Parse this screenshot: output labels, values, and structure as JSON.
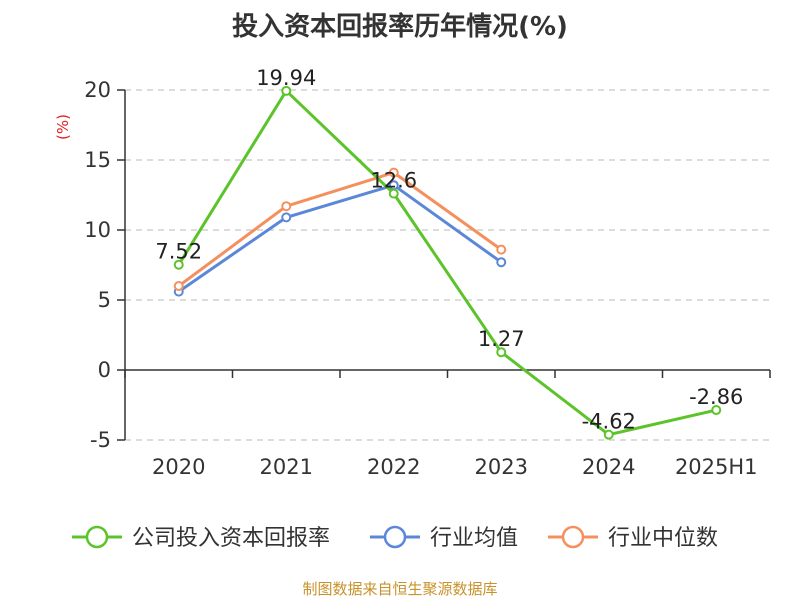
{
  "chart_data": {
    "type": "line",
    "title": "投入资本回报率历年情况(%)",
    "ylabel": "(%)",
    "categories": [
      "2020",
      "2021",
      "2022",
      "2023",
      "2024",
      "2025H1"
    ],
    "ylim": [
      -5,
      20
    ],
    "yticks": [
      -5,
      0,
      5,
      10,
      15,
      20
    ],
    "grid": true,
    "legend_position": "bottom",
    "series": [
      {
        "name": "公司投入资本回报率",
        "color": "#5cc42a",
        "values": [
          7.52,
          19.94,
          12.6,
          1.27,
          -4.62,
          -2.86
        ],
        "labels": [
          "7.52",
          "19.94",
          "12.6",
          "1.27",
          "-4.62",
          "-2.86"
        ]
      },
      {
        "name": "行业均值",
        "color": "#5b87d9",
        "values": [
          5.6,
          10.9,
          13.2,
          7.7,
          null,
          null
        ]
      },
      {
        "name": "行业中位数",
        "color": "#f5905e",
        "values": [
          6.0,
          11.7,
          14.1,
          8.6,
          null,
          null
        ]
      }
    ],
    "source": "制图数据来自恒生聚源数据库"
  }
}
